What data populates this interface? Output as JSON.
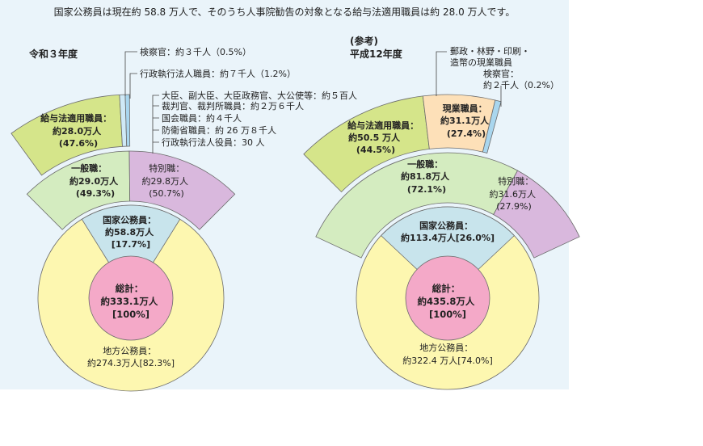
{
  "header": "国家公務員は現在約 58.8 万人で、そのうち人事院勧告の対象となる給与法適用職員は約 28.0 万人です。",
  "colors": {
    "total": "#f4a9c8",
    "kokka": "#c8e4ec",
    "chiho": "#fdf7b0",
    "ippan": "#d4ecc0",
    "tokubetsu": "#d9b8dd",
    "kyuyo": "#d5e58a",
    "other_light": "#cfe9f6",
    "genkyo": "#fde0b8",
    "kensatsu": "#a9d6ee"
  },
  "chart_data": [
    {
      "type": "pie",
      "title": "令和３年度",
      "title_note": "",
      "total": {
        "label": "総計：",
        "value": "約333.1万人",
        "pct": "[100%]"
      },
      "kokka": {
        "label": "国家公務員：",
        "value": "約58.8万人",
        "pct": "[17.7%]",
        "share": 17.7
      },
      "chiho": {
        "label": "地方公務員：",
        "value": "約274.3万人[82.3%]",
        "share": 82.3
      },
      "ippan": {
        "label": "一般職：",
        "value": "約29.0万人",
        "pct": "(49.3%)",
        "share": 49.3
      },
      "tokubetsu": {
        "label": "特別職：",
        "value": "約29.8万人",
        "pct": "(50.7%)",
        "share": 50.7
      },
      "kyuyo": {
        "label": "給与法適用職員：",
        "value": "約28.0万人",
        "pct": "(47.6%)"
      },
      "tokubetsu_breakdown": [
        "大臣、副大臣、大臣政務官、大公使等：約５百人",
        "裁判官、裁判所職員：約２万６千人",
        "国会職員：約４千人",
        "防衛省職員：約 26 万８千人",
        "行政執行法人役員：30 人"
      ],
      "callouts": [
        "検察官：約３千人（0.5%）",
        "行政執行法人職員：約７千人（1.2%）"
      ]
    },
    {
      "type": "pie",
      "title": "平成12年度",
      "title_note": "(参考)",
      "total": {
        "label": "総計：",
        "value": "約435.8万人",
        "pct": "[100%]"
      },
      "kokka": {
        "label": "国家公務員：",
        "value": "約113.4万人[26.0%]",
        "share": 26.0
      },
      "chiho": {
        "label": "地方公務員：",
        "value": "約322.4 万人[74.0%]",
        "share": 74.0
      },
      "ippan": {
        "label": "一般職：",
        "value": "約81.8万人",
        "pct": "(72.1%)",
        "share": 72.1
      },
      "tokubetsu": {
        "label": "特別職：",
        "value": "約31.6万人",
        "pct": "(27.9%)",
        "share": 27.9
      },
      "kyuyo": {
        "label": "給与法適用職員：",
        "value": "約50.5 万人",
        "pct": "(44.5%)"
      },
      "genkyo": {
        "label": "現業職員：",
        "value": "約31.1万人",
        "pct": "(27.4%)"
      },
      "callouts": [
        "郵政・林野・印刷・",
        "造幣の現業職員",
        "検察官：",
        "約２千人（0.2%）"
      ]
    }
  ]
}
